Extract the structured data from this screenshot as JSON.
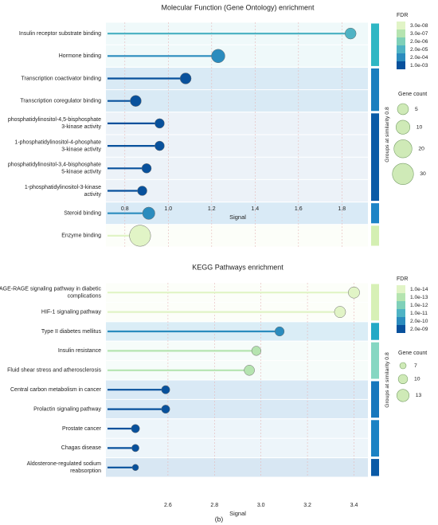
{
  "figure_label": "(b)",
  "colors": {
    "row_band_light": "#eaf4fa",
    "fdr_scale": [
      "#08519c",
      "#2b8cbe",
      "#4fb3c4",
      "#7fd0b8",
      "#b5e4b0",
      "#e1f4c6"
    ]
  },
  "chart_data": [
    {
      "type": "lollipop",
      "title": "Molecular Function (Gene Ontology) enrichment",
      "xlabel": "Signal",
      "xlim": [
        0.72,
        1.92
      ],
      "xticks": [
        "0.8",
        "1.0",
        "1.2",
        "1.4",
        "1.6",
        "1.8"
      ],
      "grid": true,
      "categories": [
        [
          "Insulin receptor substrate binding"
        ],
        [
          "Hormone binding"
        ],
        [
          "Transcription coactivator binding"
        ],
        [
          "Transcription coregulator binding"
        ],
        [
          "phosphatidylinositol-4,5-bisphosphate",
          "3-kinase activity"
        ],
        [
          "1-phosphatidylinositol-4-phosphate",
          "3-kinase activity"
        ],
        [
          "phosphatidylinositol-3,4-bisphosphate",
          "5-kinase activity"
        ],
        [
          "1-phosphatidylinositol-3-kinase",
          "activity"
        ],
        [
          "Steroid binding"
        ],
        [
          "Enzyme binding"
        ]
      ],
      "signal": [
        1.84,
        1.23,
        1.08,
        0.85,
        0.96,
        0.96,
        0.9,
        0.88,
        0.91,
        0.87
      ],
      "gene_count": [
        5,
        9,
        5,
        5,
        3,
        3,
        3,
        3,
        7,
        30
      ],
      "fdr_color_index": [
        2,
        1,
        0,
        0,
        0,
        0,
        0,
        0,
        1,
        5
      ],
      "groups": [
        {
          "rows": [
            0,
            1
          ],
          "color": "#2fb7c4"
        },
        {
          "rows": [
            2,
            3
          ],
          "color": "#1b7fbf"
        },
        {
          "rows": [
            4,
            7
          ],
          "color": "#0a5aa6"
        },
        {
          "rows": [
            8,
            8
          ],
          "color": "#1d84c6"
        },
        {
          "rows": [
            9,
            9
          ],
          "color": "#d4efb2"
        }
      ],
      "group_axis_label": "Groups at similarity 0.8",
      "legend": {
        "fdr_title": "FDR",
        "fdr_labels": [
          "3.0e-08",
          "3.0e-07",
          "2.0e-06",
          "2.0e-05",
          "2.0e-04",
          "1.0e-03"
        ],
        "size_title": "Gene count",
        "size_labels": [
          "5",
          "10",
          "20",
          "30"
        ],
        "size_values": [
          5,
          10,
          20,
          30
        ]
      }
    },
    {
      "type": "lollipop",
      "title": "KEGG Pathways enrichment",
      "xlabel": "Signal",
      "xlim": [
        2.34,
        3.46
      ],
      "xticks": [
        "2.6",
        "2.8",
        "3.0",
        "3.2",
        "3.4"
      ],
      "grid": true,
      "categories": [
        [
          "AGE-RAGE signaling pathway in diabetic",
          "complications"
        ],
        [
          "HIF-1 signaling pathway"
        ],
        [
          "Type II diabetes mellitus"
        ],
        [
          "Insulin resistance"
        ],
        [
          "Fluid shear stress and atherosclerosis"
        ],
        [
          "Central carbon metabolism in cancer"
        ],
        [
          "Prolactin signaling pathway"
        ],
        [
          "Prostate cancer"
        ],
        [
          "Chagas disease"
        ],
        [
          "Aldosterone-regulated sodium",
          "reabsorption"
        ]
      ],
      "signal": [
        3.4,
        3.34,
        3.08,
        2.98,
        2.95,
        2.59,
        2.59,
        2.46,
        2.46,
        2.46
      ],
      "gene_count": [
        12,
        12,
        10,
        10,
        11,
        9,
        9,
        9,
        8,
        7
      ],
      "fdr_color_index": [
        5,
        5,
        1,
        4,
        4,
        0,
        0,
        0,
        0,
        0
      ],
      "groups": [
        {
          "rows": [
            0,
            1
          ],
          "color": "#d7f0b6"
        },
        {
          "rows": [
            2,
            2
          ],
          "color": "#23a9c6"
        },
        {
          "rows": [
            3,
            4
          ],
          "color": "#86d7c2"
        },
        {
          "rows": [
            5,
            6
          ],
          "color": "#1677bd"
        },
        {
          "rows": [
            7,
            8
          ],
          "color": "#1b82c4"
        },
        {
          "rows": [
            9,
            9
          ],
          "color": "#0a5aa6"
        }
      ],
      "group_axis_label": "Groups at similarity 0.8",
      "legend": {
        "fdr_title": "FDR",
        "fdr_labels": [
          "1.0e-14",
          "1.0e-13",
          "1.0e-12",
          "1.0e-11",
          "2.0e-10",
          "2.0e-09"
        ],
        "size_title": "Gene count",
        "size_labels": [
          "7",
          "10",
          "13"
        ],
        "size_values": [
          7,
          10,
          13
        ]
      }
    }
  ]
}
